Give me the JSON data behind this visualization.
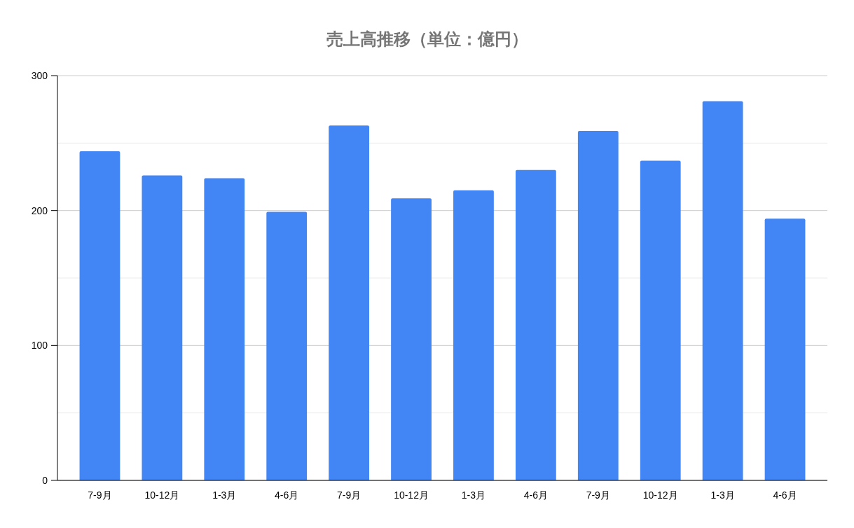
{
  "chart_data": {
    "type": "bar",
    "title": "売上高推移（単位：億円）",
    "categories": [
      "7-9月",
      "10-12月",
      "1-3月",
      "4-6月",
      "7-9月",
      "10-12月",
      "1-3月",
      "4-6月",
      "7-9月",
      "10-12月",
      "1-3月",
      "4-6月"
    ],
    "values": [
      244,
      226,
      224,
      199,
      263,
      209,
      215,
      230,
      259,
      237,
      281,
      194
    ],
    "color": "#4285f4",
    "ylim": [
      0,
      300
    ],
    "yticks": [
      0,
      {
        "value": 50,
        "label": null
      },
      100,
      {
        "value": 150,
        "label": null
      },
      200,
      {
        "value": 250,
        "label": null
      },
      300
    ],
    "grid": "y"
  }
}
